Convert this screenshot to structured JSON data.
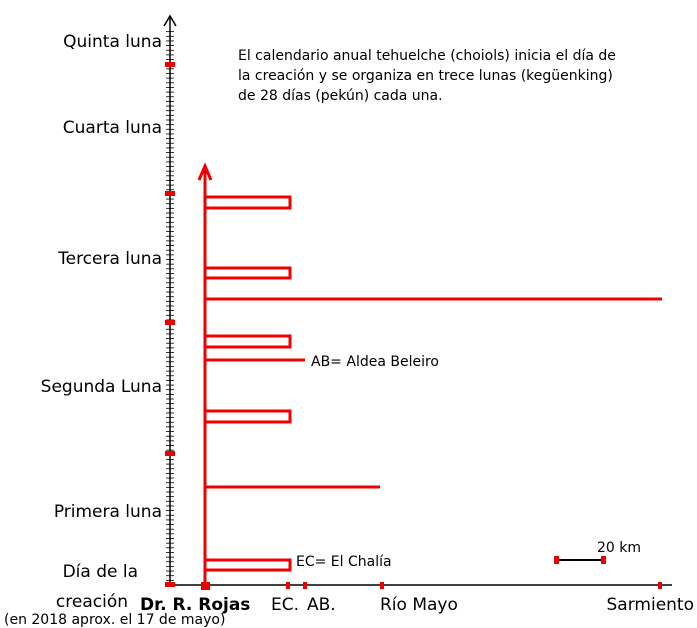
{
  "moons": [
    "Quinta luna",
    "Cuarta luna",
    "Tercera luna",
    "Segunda Luna",
    "Primera luna"
  ],
  "creation": {
    "label": [
      "Día de la",
      "creación"
    ],
    "note": "(en 2018 aprox. el 17 de mayo)"
  },
  "description": [
    "El calendario anual tehuelche (choiols) inicia el día de",
    "la creación y se organiza en trece lunas (kegüenking)",
    "de 28 días (pekún) cada una."
  ],
  "legend": {
    "ab": "AB= Aldea Beleiro",
    "ec": "EC= El Chalía",
    "scale": "20 km"
  },
  "places": [
    "Dr. R. Rojas",
    "EC.",
    "AB.",
    "Río Mayo",
    "Sarmiento"
  ]
}
